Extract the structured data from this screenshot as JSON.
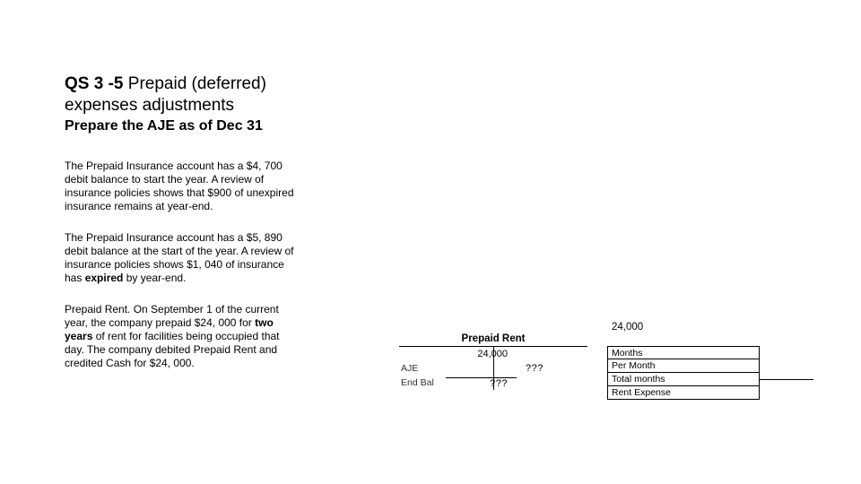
{
  "title": {
    "code": "QS 3 -5",
    "rest": "Prepaid (deferred) expenses adjustments"
  },
  "subtitle": "Prepare the AJE as of Dec 31",
  "paragraphs": {
    "p1": "The Prepaid Insurance account has a $4, 700 debit balance to start the year. A review of insurance policies shows that $900 of unexpired insurance remains at year-end.",
    "p2_a": "The Prepaid Insurance account has a $5, 890 debit balance at the start of the year. A review of insurance policies shows $1, 040 of insurance has ",
    "p2_bold": "expired",
    "p2_b": " by year-end.",
    "p3_a": "Prepaid Rent. On September 1 of the current year, the company prepaid $24, 000 for ",
    "p3_bold": "two years",
    "p3_b": " of rent for facilities being occupied that day. The company debited Prepaid Rent and credited Cash for $24, 000."
  },
  "prepaid_amount_top": "24,000",
  "taccount": {
    "title": "Prepaid Rent",
    "row1_left": "24,000",
    "row2_label": "AJE",
    "row2_right": "???",
    "row3_label": "End Bal",
    "row3_left": "???"
  },
  "calc": {
    "months_label": "Months",
    "per_month_label": "Per Month",
    "total_months_label": "Total months",
    "rent_expense_label": "Rent Expense"
  }
}
